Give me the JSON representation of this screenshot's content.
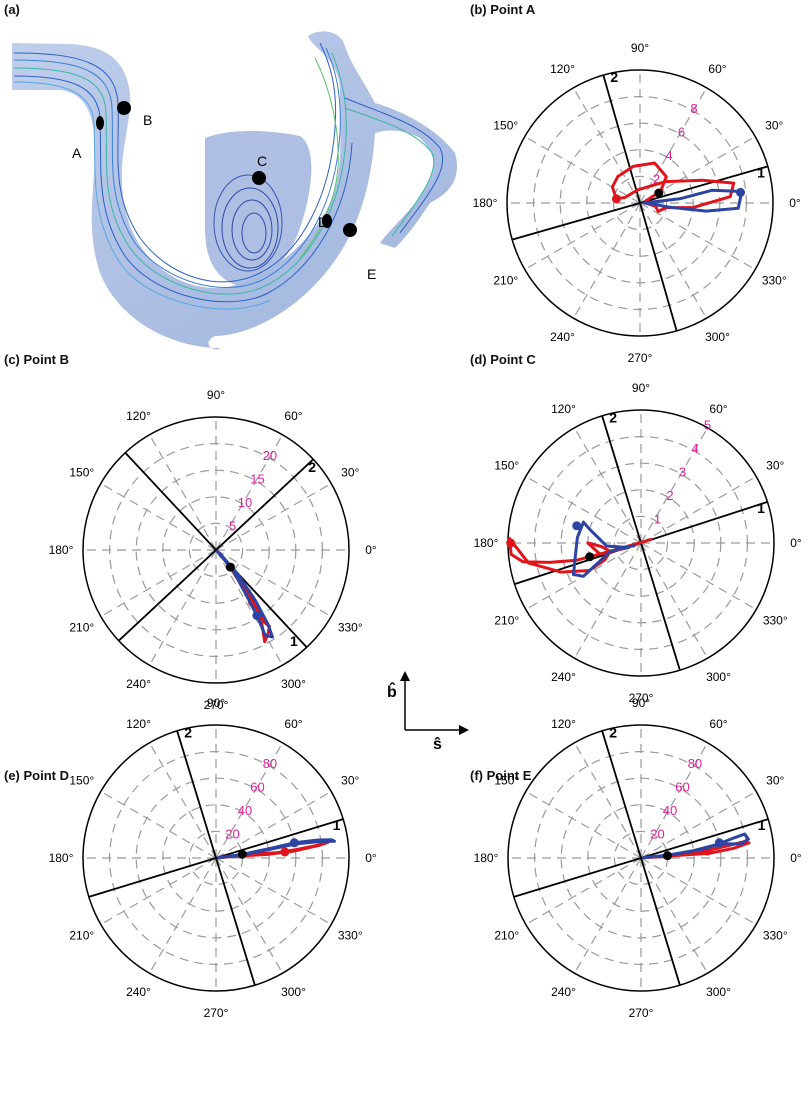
{
  "panel_a": {
    "title": "(a)",
    "markers": [
      {
        "label": "A"
      },
      {
        "label": "B"
      },
      {
        "label": "C"
      },
      {
        "label": "D"
      },
      {
        "label": "E"
      }
    ],
    "colors": {
      "vessel": "#9fb4dc",
      "streamline": "#2d5fc8",
      "streamline_fast": "#3cb5a8",
      "marker": "#000000"
    }
  },
  "axes_legend": {
    "b_label": "b̂",
    "s_label": "ŝ"
  },
  "colors": {
    "red": "#e0141a",
    "blue": "#2c44a4",
    "grid": "#9a9a9a",
    "radial_label": "#e0209a",
    "frame": "#000000"
  },
  "chart_data": [
    {
      "panel": "(b) Point A",
      "type": "polar-line",
      "theta_ticks": [
        "0°",
        "30°",
        "60°",
        "90°",
        "120°",
        "150°",
        "180°",
        "210°",
        "240°",
        "270°",
        "300°",
        "330°"
      ],
      "r_ticks": [
        "2",
        "4",
        "6",
        "8"
      ],
      "r_tick_values": [
        2,
        4,
        6,
        8
      ],
      "r_max": 10,
      "axis_labels": [
        {
          "text": "1",
          "theta_deg": 16
        },
        {
          "text": "2",
          "theta_deg": 106
        }
      ],
      "start_point": {
        "theta_deg": 28,
        "r": 1.6
      },
      "series": [
        {
          "color": "red",
          "points": [
            [
              20,
              0.5
            ],
            [
              30,
              1.8
            ],
            [
              45,
              2.8
            ],
            [
              70,
              3.2
            ],
            [
              100,
              2.8
            ],
            [
              130,
              2.6
            ],
            [
              150,
              2.4
            ],
            [
              170,
              1.8
            ],
            [
              160,
              1.2
            ],
            [
              100,
              1.0
            ],
            [
              40,
              2.5
            ],
            [
              20,
              5.0
            ],
            [
              12,
              7.2
            ],
            [
              4,
              6.8
            ],
            [
              -5,
              4.0
            ],
            [
              -10,
              2.0
            ],
            [
              -25,
              1.5
            ],
            [
              -12,
              1.2
            ],
            [
              0,
              0.4
            ]
          ],
          "end_marker": {
            "theta_deg": 170,
            "r": 1.8
          }
        },
        {
          "color": "blue",
          "points": [
            [
              0,
              0.3
            ],
            [
              6,
              3.0
            ],
            [
              10,
              5.5
            ],
            [
              7,
              7.3
            ],
            [
              4,
              7.6
            ],
            [
              -3,
              7.4
            ],
            [
              -7,
              5.0
            ],
            [
              -8,
              2.2
            ],
            [
              -5,
              1.0
            ],
            [
              0,
              0.4
            ]
          ],
          "end_marker": {
            "theta_deg": 6,
            "r": 7.6
          }
        }
      ]
    },
    {
      "panel": "(c) Point B",
      "type": "polar-line",
      "theta_ticks": [
        "0°",
        "30°",
        "60°",
        "90°",
        "120°",
        "150°",
        "180°",
        "210°",
        "240°",
        "270°",
        "300°",
        "330°"
      ],
      "r_ticks": [
        "5",
        "10",
        "15",
        "20"
      ],
      "r_tick_values": [
        5,
        10,
        15,
        20
      ],
      "r_max": 25,
      "axis_labels": [
        {
          "text": "1",
          "theta_deg": -47
        },
        {
          "text": "2",
          "theta_deg": 43
        }
      ],
      "start_point": {
        "theta_deg": -50,
        "r": 4.2
      },
      "series": [
        {
          "color": "red",
          "points": [
            [
              -44,
              0.5
            ],
            [
              -50,
              4.0
            ],
            [
              -54,
              8.0
            ],
            [
              -55,
              12.0
            ],
            [
              -56,
              16.5
            ],
            [
              -55,
              17.5
            ],
            [
              -58,
              18.5
            ],
            [
              -62,
              19.5
            ],
            [
              -56,
              15.0
            ],
            [
              -52,
              9.0
            ],
            [
              -48,
              4.0
            ],
            [
              -40,
              0.6
            ]
          ],
          "end_marker": {
            "theta_deg": -55,
            "r": 12.0
          }
        },
        {
          "color": "blue",
          "points": [
            [
              -45,
              0.4
            ],
            [
              -50,
              5.0
            ],
            [
              -56,
              10.0
            ],
            [
              -58,
              14.5
            ],
            [
              -60,
              18.5
            ],
            [
              -57,
              19.5
            ],
            [
              -55,
              17.0
            ],
            [
              -52,
              12.0
            ],
            [
              -48,
              6.0
            ],
            [
              -43,
              1.0
            ]
          ],
          "end_marker": {
            "theta_deg": -58,
            "r": 14.5
          }
        }
      ]
    },
    {
      "panel": "(d) Point C",
      "type": "polar-line",
      "theta_ticks": [
        "0°",
        "30°",
        "60°",
        "90°",
        "120°",
        "150°",
        "180°",
        "210°",
        "240°",
        "270°",
        "300°",
        "330°"
      ],
      "r_ticks": [
        "1",
        "2",
        "3",
        "4",
        "5"
      ],
      "r_tick_values": [
        1,
        2,
        3,
        4,
        5
      ],
      "r_max": 5,
      "axis_labels": [
        {
          "text": "1",
          "theta_deg": 18
        },
        {
          "text": "2",
          "theta_deg": 107
        }
      ],
      "start_point": {
        "theta_deg": 195,
        "r": 2.0
      },
      "series": [
        {
          "color": "red",
          "points": [
            [
              20,
              0.4
            ],
            [
              195,
              0.8
            ],
            [
              195,
              1.5
            ],
            [
              195,
              2.5
            ],
            [
              192,
              3.5
            ],
            [
              189,
              4.5
            ],
            [
              185,
              4.9
            ],
            [
              178,
              4.95
            ],
            [
              190,
              4.3
            ],
            [
              200,
              3.2
            ],
            [
              208,
              2.2
            ],
            [
              205,
              1.5
            ],
            [
              195,
              1.2
            ],
            [
              185,
              1.5
            ],
            [
              180,
              2.0
            ],
            [
              195,
              1.6
            ],
            [
              200,
              0.5
            ]
          ],
          "end_marker": {
            "theta_deg": 180,
            "r": 4.9
          }
        },
        {
          "color": "blue",
          "points": [
            [
              200,
              0.3
            ],
            [
              195,
              1.2
            ],
            [
              205,
              1.8
            ],
            [
              210,
              2.5
            ],
            [
              205,
              2.8
            ],
            [
              190,
              2.5
            ],
            [
              175,
              2.4
            ],
            [
              160,
              2.3
            ],
            [
              165,
              2.0
            ],
            [
              185,
              1.3
            ],
            [
              200,
              0.5
            ]
          ],
          "end_marker": {
            "theta_deg": 165,
            "r": 2.5
          }
        }
      ]
    },
    {
      "panel": "(e) Point D",
      "type": "polar-line",
      "theta_ticks": [
        "0°",
        "30°",
        "60°",
        "90°",
        "120°",
        "150°",
        "180°",
        "210°",
        "240°",
        "270°",
        "300°",
        "330°"
      ],
      "r_ticks": [
        "20",
        "40",
        "60",
        "80"
      ],
      "r_tick_values": [
        20,
        40,
        60,
        80
      ],
      "r_max": 100,
      "axis_labels": [
        {
          "text": "1",
          "theta_deg": 17
        },
        {
          "text": "2",
          "theta_deg": 107
        }
      ],
      "start_point": {
        "theta_deg": 8,
        "r": 20
      },
      "series": [
        {
          "color": "red",
          "points": [
            [
              5,
              2
            ],
            [
              7,
              12
            ],
            [
              6,
              28
            ],
            [
              5,
              45
            ],
            [
              6,
              60
            ],
            [
              7,
              75
            ],
            [
              8,
              85
            ],
            [
              7,
              78
            ],
            [
              5,
              58
            ],
            [
              4,
              38
            ],
            [
              5,
              18
            ],
            [
              5,
              2
            ]
          ],
          "end_marker": {
            "theta_deg": 5,
            "r": 52
          }
        },
        {
          "color": "blue",
          "points": [
            [
              6,
              2
            ],
            [
              8,
              20
            ],
            [
              10,
              40
            ],
            [
              11,
              60
            ],
            [
              10,
              78
            ],
            [
              9,
              88
            ],
            [
              8,
              90
            ],
            [
              9,
              80
            ],
            [
              10,
              62
            ],
            [
              9,
              40
            ],
            [
              7,
              18
            ],
            [
              6,
              2
            ]
          ],
          "end_marker": {
            "theta_deg": 11,
            "r": 60
          }
        }
      ]
    },
    {
      "panel": "(f) Point E",
      "type": "polar-line",
      "theta_ticks": [
        "0°",
        "30°",
        "60°",
        "90°",
        "120°",
        "150°",
        "180°",
        "210°",
        "240°",
        "270°",
        "300°",
        "330°"
      ],
      "r_ticks": [
        "20",
        "40",
        "60",
        "80"
      ],
      "r_tick_values": [
        20,
        40,
        60,
        80
      ],
      "r_max": 100,
      "axis_labels": [
        {
          "text": "1",
          "theta_deg": 17
        },
        {
          "text": "2",
          "theta_deg": 107
        }
      ],
      "start_point": {
        "theta_deg": 5,
        "r": 20
      },
      "series": [
        {
          "color": "red",
          "points": [
            [
              4,
              2
            ],
            [
              5,
              15
            ],
            [
              5,
              30
            ],
            [
              6,
              48
            ],
            [
              8,
              65
            ],
            [
              9,
              78
            ],
            [
              8,
              82
            ],
            [
              6,
              70
            ],
            [
              4,
              52
            ],
            [
              4,
              32
            ],
            [
              4,
              14
            ],
            [
              4,
              2
            ]
          ],
          "end_marker": {
            "theta_deg": 6,
            "r": 50
          }
        },
        {
          "color": "blue",
          "points": [
            [
              5,
              2
            ],
            [
              6,
              20
            ],
            [
              8,
              40
            ],
            [
              10,
              58
            ],
            [
              12,
              70
            ],
            [
              13,
              80
            ],
            [
              10,
              82
            ],
            [
              8,
              76
            ],
            [
              10,
              62
            ],
            [
              8,
              44
            ],
            [
              6,
              22
            ],
            [
              5,
              2
            ]
          ],
          "end_marker": {
            "theta_deg": 11,
            "r": 60
          }
        }
      ]
    }
  ]
}
